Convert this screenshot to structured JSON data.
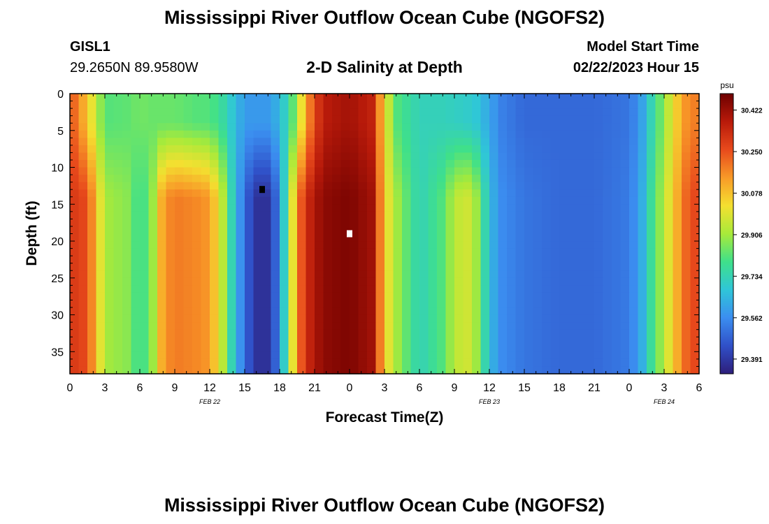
{
  "header": {
    "title": "Mississippi River Outflow Ocean Cube (NGOFS2)",
    "station": "GISL1",
    "coords": "29.2650N  89.9580W",
    "subtitle": "2-D Salinity at Depth",
    "model_start_label": "Model Start Time",
    "model_start_time": "02/22/2023 Hour 15"
  },
  "footer": {
    "title": "Mississippi River Outflow Ocean Cube (NGOFS2)"
  },
  "chart_data": {
    "type": "heatmap",
    "xlabel": "Forecast Time(Z)",
    "ylabel": "Depth (ft)",
    "x_hours_range": [
      0,
      54
    ],
    "x_tick_labels": [
      "0",
      "3",
      "6",
      "9",
      "12",
      "15",
      "18",
      "21",
      "0",
      "3",
      "6",
      "9",
      "12",
      "15",
      "18",
      "21",
      "0",
      "3",
      "6"
    ],
    "date_labels": [
      {
        "label": "FEB 22",
        "hour": 12
      },
      {
        "label": "FEB 23",
        "hour": 36
      },
      {
        "label": "FEB 24",
        "hour": 51
      }
    ],
    "ylim": [
      0,
      38
    ],
    "y_ticks": [
      0,
      5,
      10,
      15,
      20,
      25,
      30,
      35
    ],
    "colorbar": {
      "unit": "psu",
      "min": 29.33,
      "max": 30.49,
      "ticks": [
        30.422,
        30.25,
        30.078,
        29.906,
        29.734,
        29.562,
        29.391
      ],
      "colors": [
        "#2d1e7a",
        "#3050c8",
        "#3b8ef0",
        "#2fc6d8",
        "#3fe08a",
        "#a8ea3a",
        "#f4e030",
        "#f89a28",
        "#e84a1c",
        "#b81a0a",
        "#6e0000"
      ]
    },
    "markers": [
      {
        "hour": 16.5,
        "depth": 13,
        "color": "#000000"
      },
      {
        "hour": 24,
        "depth": 19,
        "color": "#ffffff"
      }
    ]
  }
}
